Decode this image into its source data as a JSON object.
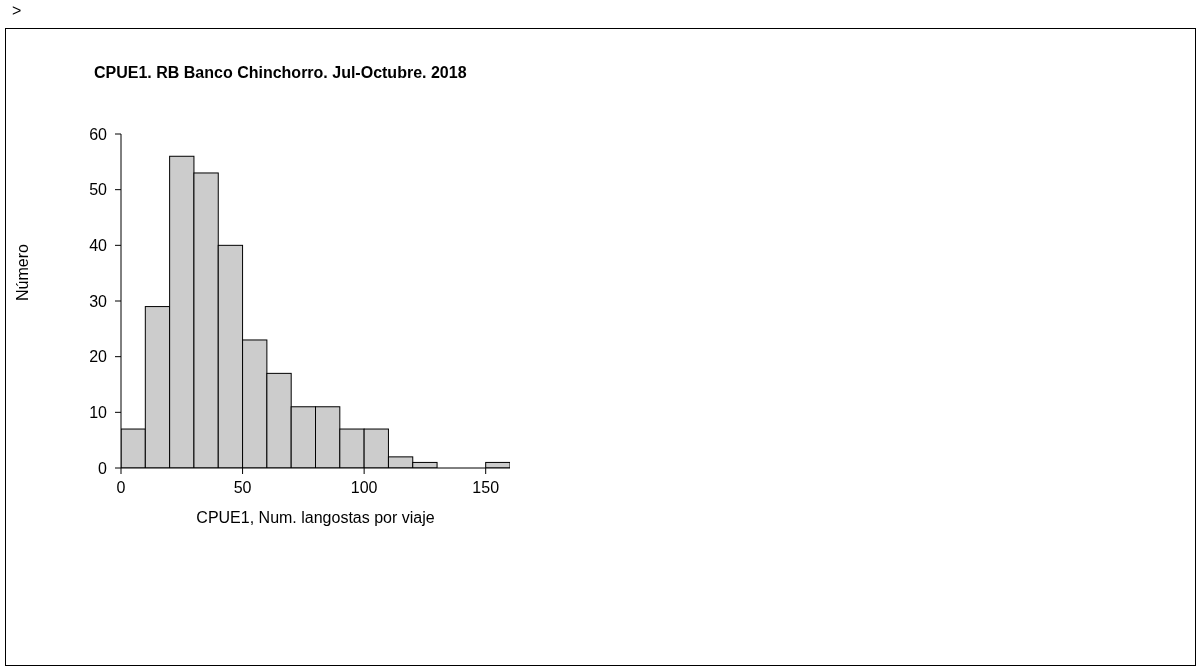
{
  "chart_data": {
    "type": "histogram",
    "title": "CPUE1. RB Banco Chinchorro. Jul-Octubre. 2018",
    "xlabel": "CPUE1, Num. langostas por viaje",
    "ylabel": "Número",
    "annotations": [
      ">"
    ],
    "bins": [
      0,
      10,
      20,
      30,
      40,
      50,
      60,
      70,
      80,
      90,
      100,
      110,
      120,
      130,
      140,
      150,
      160
    ],
    "values": [
      7,
      29,
      56,
      53,
      40,
      23,
      17,
      11,
      11,
      7,
      7,
      2,
      1,
      0,
      0,
      1
    ],
    "color": "#cccccc",
    "xlim": [
      0,
      160
    ],
    "xticks": [
      0,
      50,
      100,
      150
    ],
    "ylim": [
      0,
      60
    ],
    "yticks": [
      0,
      10,
      20,
      30,
      40,
      50,
      60
    ],
    "grid": false
  }
}
